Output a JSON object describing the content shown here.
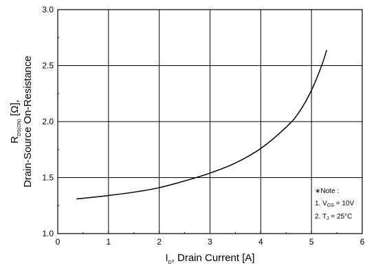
{
  "chart_data": {
    "type": "line",
    "xlabel": {
      "main": "I",
      "sub": "D",
      "rest": ", Drain Current [A]"
    },
    "ylabel": {
      "line1_main": "R",
      "line1_sub": "DS(ON)",
      "line1_rest": " [Ω],",
      "line2": "Drain-Source On-Resistance"
    },
    "xlim": [
      0,
      6
    ],
    "ylim": [
      1.0,
      3.0
    ],
    "x_ticks": [
      "0",
      "1",
      "2",
      "3",
      "4",
      "5",
      "6"
    ],
    "y_ticks": [
      "1.0",
      "1.5",
      "2.0",
      "2.5",
      "3.0"
    ],
    "grid": true,
    "series": [
      {
        "color": "#000000",
        "x": [
          0.37,
          0.6,
          1.0,
          1.5,
          2.0,
          2.5,
          3.0,
          3.5,
          4.0,
          4.5,
          4.75,
          5.0,
          5.2,
          5.3
        ],
        "y": [
          1.31,
          1.32,
          1.34,
          1.37,
          1.41,
          1.47,
          1.54,
          1.63,
          1.76,
          1.95,
          2.08,
          2.28,
          2.5,
          2.64
        ]
      }
    ],
    "note": {
      "title": "∗Note :",
      "line1": {
        "prefix": "1. V",
        "sub": "GS",
        "suffix": " = 10V"
      },
      "line2": {
        "prefix": "2. T",
        "sub": "J",
        "suffix": " = 25°C"
      }
    }
  }
}
